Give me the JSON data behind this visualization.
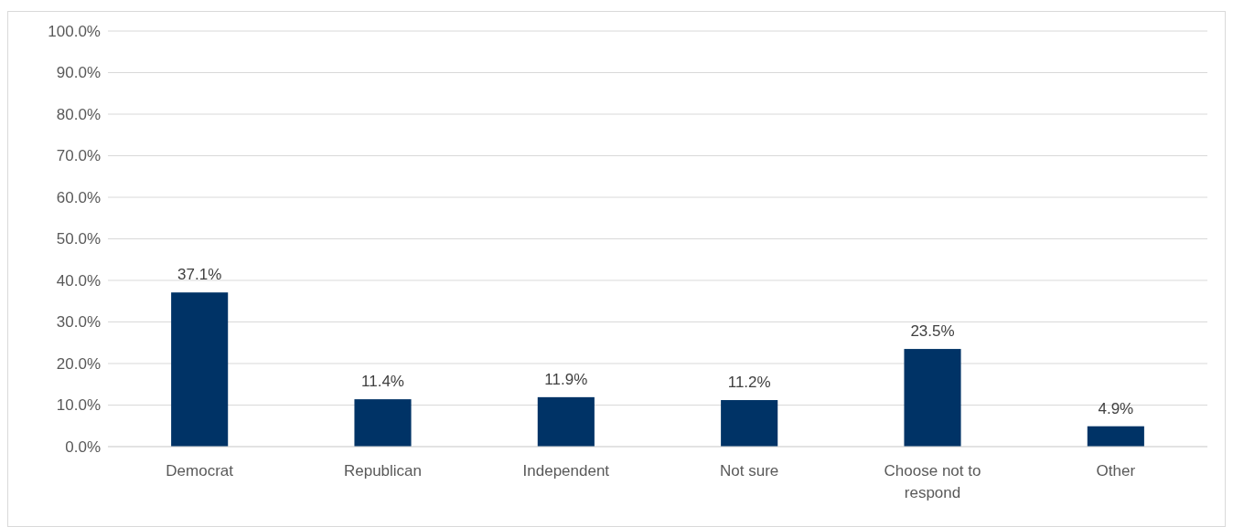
{
  "chart_data": {
    "type": "bar",
    "categories": [
      "Democrat",
      "Republican",
      "Independent",
      "Not sure",
      "Choose not to respond",
      "Other"
    ],
    "values": [
      37.1,
      11.4,
      11.9,
      11.2,
      23.5,
      4.9
    ],
    "color": "#003366",
    "ylim": [
      0,
      100
    ],
    "yticks": [
      {
        "value": 0,
        "label": "0.0%"
      },
      {
        "value": 10,
        "label": "10.0%"
      },
      {
        "value": 20,
        "label": "20.0%"
      },
      {
        "value": 30,
        "label": "30.0%"
      },
      {
        "value": 40,
        "label": "40.0%"
      },
      {
        "value": 50,
        "label": "50.0%"
      },
      {
        "value": 60,
        "label": "60.0%"
      },
      {
        "value": 70,
        "label": "70.0%"
      },
      {
        "value": 80,
        "label": "80.0%"
      },
      {
        "value": 90,
        "label": "90.0%"
      },
      {
        "value": 100,
        "label": "100.0%"
      }
    ],
    "value_labels": [
      "37.1%",
      "11.4%",
      "11.9%",
      "11.2%",
      "23.5%",
      "4.9%"
    ],
    "grid": "y"
  }
}
